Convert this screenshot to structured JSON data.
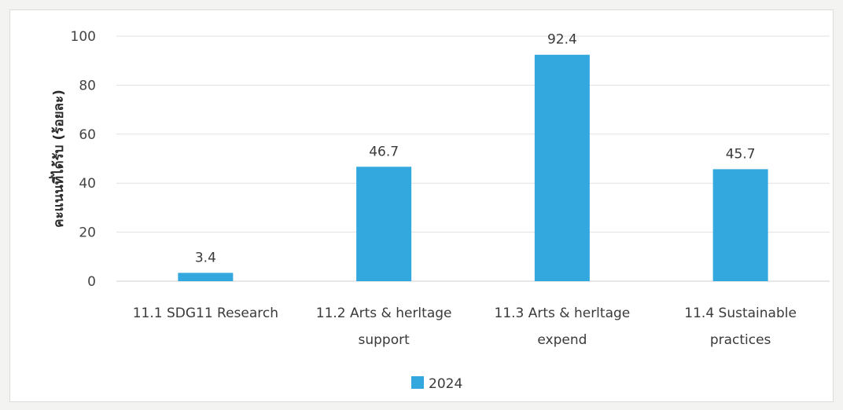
{
  "chart_data": {
    "type": "bar",
    "categories": [
      [
        "11.1 SDG11 Research"
      ],
      [
        "11.2 Arts & herltage",
        "support"
      ],
      [
        "11.3  Arts & herltage",
        "expend"
      ],
      [
        "11.4 Sustainable",
        "practices"
      ]
    ],
    "series": [
      {
        "name": "2024",
        "values": [
          3.4,
          46.7,
          92.4,
          45.7
        ],
        "color": "#33a8df"
      }
    ],
    "data_labels": [
      "3.4",
      "46.7",
      "92.4",
      "45.7"
    ],
    "ylabel": "คะแนนที่ได้รับ (ร้อยละ)",
    "ylim": [
      0,
      100
    ],
    "yticks": [
      0,
      20,
      40,
      60,
      80,
      100
    ],
    "grid": true,
    "legend": {
      "position": "bottom",
      "label": "2024"
    }
  }
}
